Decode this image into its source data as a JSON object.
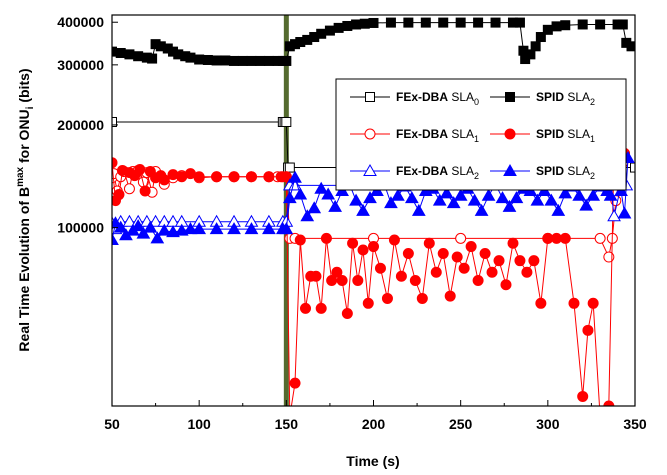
{
  "chart_data": {
    "type": "line",
    "xlabel": "Time (s)",
    "ylabel": {
      "prefix": "Real Time Evolution of B",
      "sup": "max",
      "mid": " for ONU",
      "sub": "i",
      "suffix": " (bits)"
    },
    "xlim": [
      50,
      350
    ],
    "ylim": [
      30000,
      420000
    ],
    "yscale": "log",
    "xticks": [
      50,
      100,
      150,
      200,
      250,
      300,
      350
    ],
    "xtick_labels": [
      "50",
      "100",
      "150",
      "200",
      "250",
      "300",
      "350"
    ],
    "yticks": [
      100000,
      200000,
      300000,
      400000
    ],
    "ytick_labels": [
      "100000",
      "200000",
      "300000",
      "400000"
    ],
    "grid": false,
    "legend_position": "right, upper middle",
    "vertical_marker": {
      "x": 150,
      "color": "#556b2f"
    },
    "series": [
      {
        "name_bold": "FEx-DBA",
        "name_rest": "SLA",
        "name_sub": "0",
        "color": "#000000",
        "marker": "square-open",
        "x": [
          50,
          148,
          149,
          150,
          151,
          152,
          350
        ],
        "y": [
          204000,
          204000,
          204000,
          204000,
          150000,
          150000,
          150000
        ]
      },
      {
        "name_bold": "SPID",
        "name_rest": "SLA",
        "name_sub": "2",
        "color": "#000000",
        "marker": "square-filled",
        "x": [
          50,
          55,
          60,
          65,
          70,
          73,
          75,
          78,
          82,
          85,
          88,
          92,
          95,
          100,
          105,
          110,
          115,
          120,
          125,
          130,
          135,
          140,
          145,
          148,
          150,
          152,
          155,
          158,
          162,
          166,
          170,
          175,
          180,
          185,
          190,
          195,
          200,
          210,
          220,
          230,
          240,
          250,
          260,
          270,
          280,
          284,
          286,
          287,
          290,
          293,
          296,
          300,
          305,
          310,
          320,
          330,
          340,
          343,
          345,
          348
        ],
        "y": [
          328000,
          325000,
          322000,
          318000,
          315000,
          313000,
          345000,
          340000,
          335000,
          328000,
          322000,
          318000,
          315000,
          311000,
          310000,
          309000,
          309000,
          308000,
          308000,
          308000,
          308000,
          308000,
          308000,
          308000,
          308000,
          340000,
          345000,
          350000,
          355000,
          362000,
          370000,
          378000,
          385000,
          390000,
          394000,
          396000,
          398000,
          399000,
          399000,
          399000,
          399000,
          399000,
          399000,
          399000,
          399000,
          399000,
          330000,
          312000,
          322000,
          340000,
          362000,
          380000,
          389000,
          392000,
          394000,
          394000,
          394000,
          394000,
          348000,
          340000
        ]
      },
      {
        "name_bold": "FEx-DBA",
        "name_rest": "SLA",
        "name_sub": "1",
        "color": "#ff0000",
        "marker": "circle-open",
        "x": [
          50,
          51,
          53,
          55,
          57,
          60,
          62,
          65,
          68,
          70,
          73,
          75,
          80,
          85,
          90,
          100,
          110,
          120,
          130,
          140,
          145,
          148,
          150,
          152,
          155,
          200,
          250,
          300,
          330,
          335,
          337,
          339,
          341,
          343
        ],
        "y": [
          140000,
          144000,
          128000,
          141000,
          146000,
          130000,
          146000,
          147000,
          136000,
          145000,
          127000,
          146000,
          134000,
          140000,
          142000,
          140000,
          141000,
          141000,
          141000,
          141000,
          141000,
          141000,
          141000,
          93000,
          93000,
          93000,
          93000,
          93000,
          93000,
          82000,
          93000,
          120000,
          140000,
          155000
        ]
      },
      {
        "name_bold": "SPID",
        "name_rest": "SLA",
        "name_sub": "1",
        "color": "#ff0000",
        "marker": "circle-filled",
        "x": [
          50,
          52,
          54,
          56,
          60,
          63,
          66,
          69,
          72,
          75,
          78,
          80,
          85,
          90,
          95,
          100,
          110,
          120,
          130,
          140,
          147,
          150,
          152,
          155,
          158,
          161,
          164,
          167,
          170,
          173,
          176,
          179,
          182,
          185,
          188,
          191,
          194,
          197,
          200,
          204,
          208,
          212,
          216,
          220,
          224,
          228,
          232,
          236,
          240,
          244,
          248,
          252,
          256,
          260,
          264,
          268,
          272,
          276,
          280,
          284,
          288,
          292,
          296,
          300,
          305,
          310,
          315,
          320,
          323,
          326,
          330,
          335,
          338,
          340,
          342,
          344
        ],
        "y": [
          155000,
          120000,
          125000,
          147000,
          145000,
          142000,
          148000,
          128000,
          146000,
          140000,
          142000,
          138000,
          143000,
          141000,
          144000,
          141000,
          141000,
          141000,
          141000,
          141000,
          141000,
          141000,
          28000,
          35000,
          92000,
          58000,
          72000,
          72000,
          58000,
          93000,
          70000,
          74000,
          70000,
          56000,
          90000,
          70000,
          86000,
          60000,
          88000,
          76000,
          62000,
          92000,
          72000,
          84000,
          70000,
          62000,
          90000,
          74000,
          84000,
          63000,
          82000,
          76000,
          88000,
          70000,
          84000,
          74000,
          80000,
          68000,
          90000,
          80000,
          74000,
          80000,
          60000,
          93000,
          93000,
          93000,
          60000,
          32000,
          50000,
          60000,
          28000,
          30000,
          170000,
          185000,
          178000,
          165000
        ]
      },
      {
        "name_bold": "FEx-DBA",
        "name_rest": "SLA",
        "name_sub": "2",
        "color": "#0000ff",
        "marker": "triangle-open",
        "x": [
          50,
          52,
          55,
          60,
          65,
          70,
          75,
          80,
          85,
          90,
          100,
          110,
          120,
          130,
          140,
          148,
          150,
          152,
          155,
          200,
          250,
          300,
          330,
          336,
          338,
          342,
          345
        ],
        "y": [
          103000,
          99000,
          104000,
          104000,
          104000,
          104000,
          104000,
          104000,
          104000,
          104000,
          104000,
          104000,
          104000,
          104000,
          104000,
          104000,
          104000,
          133000,
          133000,
          133000,
          133000,
          133000,
          133000,
          133000,
          108000,
          133000,
          133000
        ]
      },
      {
        "name_bold": "SPID",
        "name_rest": "SLA",
        "name_sub": "2",
        "color": "#0000ff",
        "marker": "triangle-filled",
        "x": [
          50,
          52,
          55,
          58,
          62,
          65,
          68,
          72,
          76,
          80,
          85,
          90,
          95,
          100,
          110,
          120,
          130,
          140,
          148,
          150,
          152,
          155,
          158,
          162,
          166,
          170,
          174,
          178,
          182,
          186,
          190,
          194,
          198,
          202,
          206,
          210,
          214,
          218,
          222,
          226,
          230,
          234,
          238,
          242,
          246,
          250,
          254,
          258,
          262,
          266,
          270,
          274,
          278,
          282,
          286,
          290,
          294,
          298,
          302,
          306,
          310,
          314,
          318,
          322,
          326,
          330,
          334,
          336,
          338,
          340,
          342,
          344,
          346
        ],
        "y": [
          92000,
          103000,
          100000,
          95000,
          98000,
          101000,
          96000,
          100000,
          93000,
          98000,
          97000,
          98000,
          99000,
          99000,
          99000,
          99000,
          99000,
          99000,
          99000,
          99000,
          122000,
          140000,
          125000,
          108000,
          114000,
          130000,
          125000,
          115000,
          128000,
          135000,
          120000,
          112000,
          122000,
          128000,
          135000,
          118000,
          124000,
          132000,
          122000,
          112000,
          128000,
          130000,
          120000,
          126000,
          118000,
          124000,
          130000,
          120000,
          112000,
          124000,
          134000,
          122000,
          115000,
          122000,
          130000,
          128000,
          120000,
          128000,
          120000,
          112000,
          126000,
          132000,
          124000,
          116000,
          124000,
          132000,
          128000,
          124000,
          134000,
          136000,
          128000,
          110000,
          160000
        ]
      }
    ]
  }
}
